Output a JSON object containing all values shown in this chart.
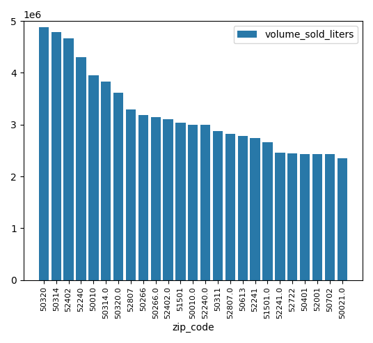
{
  "categories": [
    "50320",
    "50314",
    "52402",
    "52240",
    "50010",
    "50314.0",
    "50320.0",
    "52807",
    "50266",
    "50266.0",
    "52402.0",
    "51501",
    "50010.0",
    "52240.0",
    "50311",
    "52807.0",
    "50613",
    "52241",
    "51501.0",
    "52241.0",
    "52722",
    "50401",
    "52001",
    "50702",
    "50021.0"
  ],
  "values": [
    4880000,
    4790000,
    4670000,
    4300000,
    3950000,
    3830000,
    3610000,
    3290000,
    3180000,
    3150000,
    3100000,
    3040000,
    2995000,
    2995000,
    2880000,
    2820000,
    2780000,
    2740000,
    2660000,
    2460000,
    2440000,
    2435000,
    2435000,
    2435000,
    2350000
  ],
  "bar_color": "#2878a8",
  "xlabel": "zip_code",
  "legend_label": "volume_sold_liters",
  "ylim": [
    0,
    5000000
  ]
}
